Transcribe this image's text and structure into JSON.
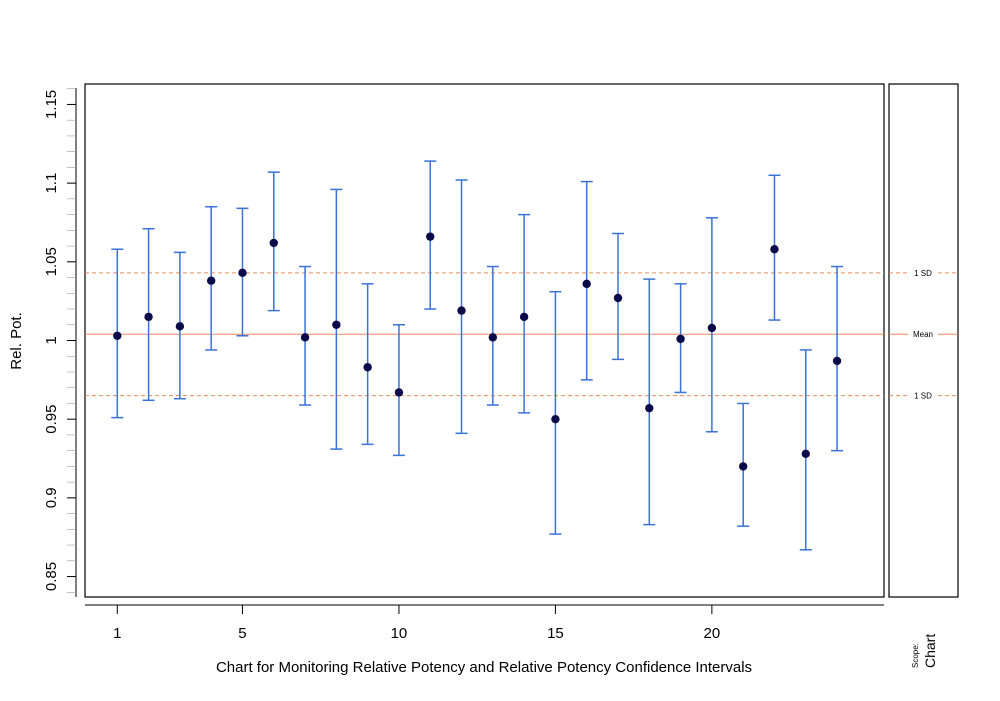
{
  "chart_data": {
    "type": "scatter",
    "ylabel": "Rel. Pot.",
    "xlabel": "Chart for Monitoring Relative Potency and Relative Potency Confidence Intervals",
    "ylim": [
      0.837,
      1.163
    ],
    "xlim": [
      0,
      25.5
    ],
    "y_ticks": [
      {
        "value": 0.85,
        "label": "0.85"
      },
      {
        "value": 0.9,
        "label": "0.9"
      },
      {
        "value": 0.95,
        "label": "0.95"
      },
      {
        "value": 1.0,
        "label": "1"
      },
      {
        "value": 1.05,
        "label": "1.05"
      },
      {
        "value": 1.1,
        "label": "1.1"
      },
      {
        "value": 1.15,
        "label": "1.15"
      }
    ],
    "x_ticks": [
      {
        "value": 1,
        "label": "1"
      },
      {
        "value": 5,
        "label": "5"
      },
      {
        "value": 10,
        "label": "10"
      },
      {
        "value": 15,
        "label": "15"
      },
      {
        "value": 20,
        "label": "20"
      }
    ],
    "points": [
      {
        "x": 1,
        "y": 1.003,
        "lower": 0.951,
        "upper": 1.058
      },
      {
        "x": 2,
        "y": 1.015,
        "lower": 0.962,
        "upper": 1.071
      },
      {
        "x": 3,
        "y": 1.009,
        "lower": 0.963,
        "upper": 1.056
      },
      {
        "x": 4,
        "y": 1.038,
        "lower": 0.994,
        "upper": 1.085
      },
      {
        "x": 5,
        "y": 1.043,
        "lower": 1.003,
        "upper": 1.084
      },
      {
        "x": 6,
        "y": 1.062,
        "lower": 1.019,
        "upper": 1.107
      },
      {
        "x": 7,
        "y": 1.002,
        "lower": 0.959,
        "upper": 1.047
      },
      {
        "x": 8,
        "y": 1.01,
        "lower": 0.931,
        "upper": 1.096
      },
      {
        "x": 9,
        "y": 0.983,
        "lower": 0.934,
        "upper": 1.036
      },
      {
        "x": 10,
        "y": 0.967,
        "lower": 0.927,
        "upper": 1.01
      },
      {
        "x": 11,
        "y": 1.066,
        "lower": 1.02,
        "upper": 1.114
      },
      {
        "x": 12,
        "y": 1.019,
        "lower": 0.941,
        "upper": 1.102
      },
      {
        "x": 13,
        "y": 1.002,
        "lower": 0.959,
        "upper": 1.047
      },
      {
        "x": 14,
        "y": 1.015,
        "lower": 0.954,
        "upper": 1.08
      },
      {
        "x": 15,
        "y": 0.95,
        "lower": 0.877,
        "upper": 1.031
      },
      {
        "x": 16,
        "y": 1.036,
        "lower": 0.975,
        "upper": 1.101
      },
      {
        "x": 17,
        "y": 1.027,
        "lower": 0.988,
        "upper": 1.068
      },
      {
        "x": 18,
        "y": 0.957,
        "lower": 0.883,
        "upper": 1.039
      },
      {
        "x": 19,
        "y": 1.001,
        "lower": 0.967,
        "upper": 1.036
      },
      {
        "x": 20,
        "y": 1.008,
        "lower": 0.942,
        "upper": 1.078
      },
      {
        "x": 21,
        "y": 0.92,
        "lower": 0.882,
        "upper": 0.96
      },
      {
        "x": 22,
        "y": 1.058,
        "lower": 1.013,
        "upper": 1.105
      },
      {
        "x": 23,
        "y": 0.928,
        "lower": 0.867,
        "upper": 0.994
      },
      {
        "x": 24,
        "y": 0.987,
        "lower": 0.93,
        "upper": 1.047
      }
    ],
    "reference_lines": [
      {
        "y": 1.043,
        "label": "1 SD",
        "style": "dashed"
      },
      {
        "y": 1.004,
        "label": "Mean",
        "style": "solid"
      },
      {
        "y": 0.965,
        "label": "1 SD",
        "style": "dashed"
      }
    ],
    "scope_label": "Scope:",
    "scope_value": "Chart",
    "colors": {
      "error_bar": "#3a72d6",
      "point": "#0a0a4a",
      "reference": "#ee8a5a",
      "frame": "#000000"
    }
  }
}
